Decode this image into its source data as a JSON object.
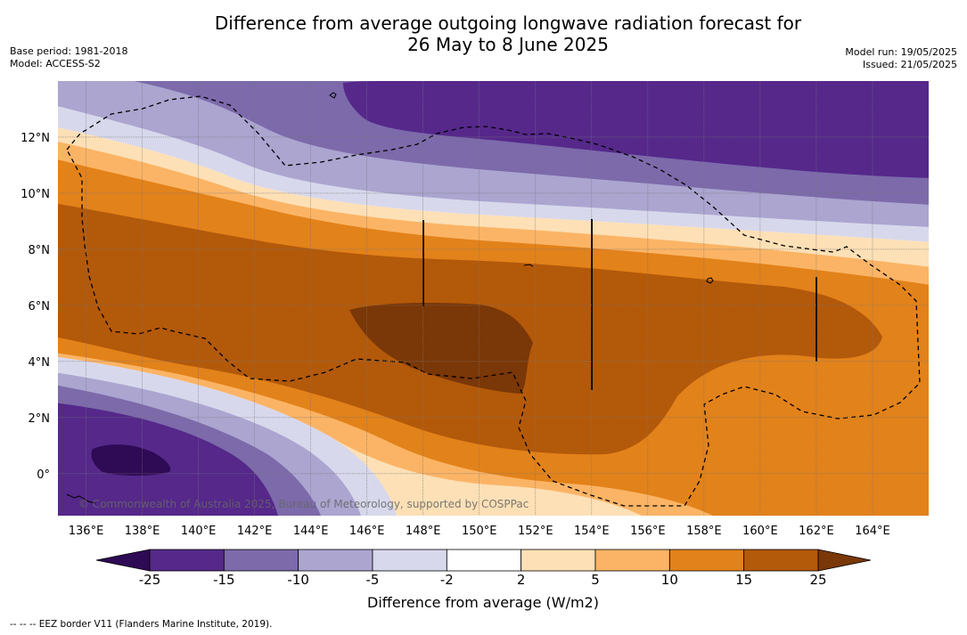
{
  "title_line1": "Difference from average outgoing longwave radiation forecast for",
  "title_line2": "26 May to 8 June 2025",
  "left_meta": {
    "base_period": "Base period: 1981-2018",
    "model": "Model: ACCESS-S2"
  },
  "right_meta": {
    "model_run": "Model run: 19/05/2025",
    "issued": "Issued: 21/05/2025"
  },
  "map": {
    "lon_range": [
      135.0,
      166.0
    ],
    "lat_range": [
      -1.5,
      14.0
    ],
    "lon_ticks": [
      "136°E",
      "138°E",
      "140°E",
      "142°E",
      "144°E",
      "146°E",
      "148°E",
      "150°E",
      "152°E",
      "154°E",
      "156°E",
      "158°E",
      "160°E",
      "162°E",
      "164°E"
    ],
    "lat_ticks": [
      "0°",
      "2°N",
      "4°N",
      "6°N",
      "8°N",
      "10°N",
      "12°N"
    ],
    "watermark": "© Commonwealth of Australia 2025, Bureau of Meteorology, supported by COSPPac"
  },
  "colorbar": {
    "labels": [
      "-25",
      "-15",
      "-10",
      "-5",
      "-2",
      "2",
      "5",
      "10",
      "15",
      "25"
    ],
    "colors": [
      "#2f0a55",
      "#55288a",
      "#7c6aaa",
      "#aba5d0",
      "#d8d8ec",
      "#ffffff",
      "#fde0b6",
      "#fbb465",
      "#e2821a",
      "#b3590a",
      "#7a3707"
    ],
    "title": "Difference from average (W/m2)"
  },
  "footnote": "--  --  -- EEZ border V11 (Flanders Marine Institute, 2019)."
}
